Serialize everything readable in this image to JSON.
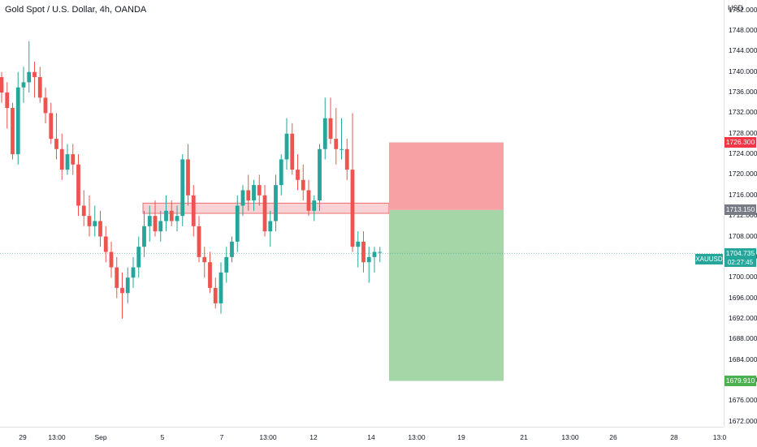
{
  "header": {
    "title": "Gold Spot / U.S. Dollar, 4h, OANDA"
  },
  "price_axis": {
    "currency": "USD",
    "ticks": [
      "1752.000",
      "1748.000",
      "1744.000",
      "1740.000",
      "1736.000",
      "1732.000",
      "1728.000",
      "1724.000",
      "1720.000",
      "1716.000",
      "1712.000",
      "1708.000",
      "1704.000",
      "1700.000",
      "1696.000",
      "1692.000",
      "1688.000",
      "1684.000",
      "1680.000",
      "1676.000",
      "1672.000"
    ],
    "tags": {
      "stop_loss": {
        "text": "1726.300",
        "color": "#f23645"
      },
      "entry": {
        "text": "1713.150",
        "color": "#787b86"
      },
      "current": {
        "text": "1704.735",
        "color": "#26a69a"
      },
      "countdown": "02:27:45",
      "take_profit": {
        "text": "1679.910",
        "color": "#4caf50"
      }
    },
    "symbol": "XAUUSD"
  },
  "time_axis": {
    "labels": [
      "29",
      "13:00",
      "Sep",
      "5",
      "7",
      "13:00",
      "12",
      "14",
      "13:00",
      "19",
      "21",
      "13:00",
      "26",
      "28",
      "13:0"
    ]
  },
  "colors": {
    "up": "#26a69a",
    "down": "#ef5350",
    "risk": "#f7a1a5",
    "reward": "#a5d6a7",
    "zone": "#f8cdd0"
  },
  "chart_data": {
    "type": "candlestick",
    "symbol": "XAUUSD",
    "interval": "4h",
    "ylim": [
      1671,
      1754
    ],
    "current_price": 1704.735,
    "candles": [
      [
        1739,
        1740,
        1734,
        1736
      ],
      [
        1736,
        1738,
        1729,
        1733
      ],
      [
        1733,
        1734,
        1723,
        1724
      ],
      [
        1724,
        1740,
        1722,
        1737
      ],
      [
        1737,
        1741,
        1734,
        1738
      ],
      [
        1738,
        1746,
        1736,
        1740
      ],
      [
        1740,
        1742,
        1735,
        1739
      ],
      [
        1739,
        1741,
        1734,
        1735
      ],
      [
        1735,
        1737,
        1730,
        1732
      ],
      [
        1732,
        1734,
        1726,
        1727
      ],
      [
        1727,
        1732,
        1723,
        1725
      ],
      [
        1725,
        1728,
        1719,
        1721
      ],
      [
        1721,
        1726,
        1720,
        1724
      ],
      [
        1724,
        1726,
        1720,
        1722
      ],
      [
        1722,
        1724,
        1712,
        1714
      ],
      [
        1714,
        1717,
        1710,
        1712
      ],
      [
        1712,
        1716,
        1708,
        1710
      ],
      [
        1710,
        1714,
        1708,
        1711
      ],
      [
        1711,
        1713,
        1706,
        1708
      ],
      [
        1708,
        1710,
        1703,
        1705
      ],
      [
        1705,
        1707,
        1700,
        1702
      ],
      [
        1702,
        1704,
        1696,
        1698
      ],
      [
        1698,
        1701,
        1692,
        1697
      ],
      [
        1697,
        1702,
        1695,
        1700
      ],
      [
        1700,
        1704,
        1698,
        1702
      ],
      [
        1702,
        1708,
        1700,
        1706
      ],
      [
        1706,
        1713,
        1704,
        1710
      ],
      [
        1710,
        1714,
        1707,
        1712
      ],
      [
        1712,
        1715,
        1708,
        1709
      ],
      [
        1709,
        1713,
        1707,
        1711
      ],
      [
        1711,
        1716,
        1709,
        1713
      ],
      [
        1713,
        1715,
        1710,
        1711
      ],
      [
        1711,
        1714,
        1709,
        1712
      ],
      [
        1712,
        1724,
        1710,
        1723
      ],
      [
        1723,
        1726,
        1714,
        1716
      ],
      [
        1716,
        1718,
        1708,
        1710
      ],
      [
        1710,
        1712,
        1703,
        1704
      ],
      [
        1704,
        1706,
        1700,
        1703
      ],
      [
        1703,
        1705,
        1697,
        1698
      ],
      [
        1698,
        1700,
        1694,
        1695
      ],
      [
        1695,
        1703,
        1693,
        1701
      ],
      [
        1701,
        1706,
        1699,
        1704
      ],
      [
        1704,
        1708,
        1703,
        1707
      ],
      [
        1707,
        1716,
        1705,
        1714
      ],
      [
        1714,
        1718,
        1712,
        1717
      ],
      [
        1717,
        1720,
        1713,
        1715
      ],
      [
        1715,
        1719,
        1713,
        1718
      ],
      [
        1718,
        1720,
        1714,
        1716
      ],
      [
        1716,
        1718,
        1708,
        1709
      ],
      [
        1709,
        1713,
        1706,
        1711
      ],
      [
        1711,
        1720,
        1709,
        1718
      ],
      [
        1718,
        1724,
        1716,
        1723
      ],
      [
        1723,
        1731,
        1721,
        1728
      ],
      [
        1728,
        1730,
        1720,
        1721
      ],
      [
        1721,
        1724,
        1717,
        1719
      ],
      [
        1719,
        1722,
        1715,
        1717
      ],
      [
        1717,
        1719,
        1712,
        1713
      ],
      [
        1713,
        1716,
        1711,
        1715
      ],
      [
        1715,
        1726,
        1713,
        1725
      ],
      [
        1725,
        1735,
        1723,
        1731
      ],
      [
        1731,
        1735,
        1726,
        1727
      ],
      [
        1727,
        1733,
        1722,
        1725
      ],
      [
        1725,
        1731,
        1723,
        1725
      ],
      [
        1725,
        1727,
        1719,
        1721
      ],
      [
        1721,
        1732,
        1705,
        1706
      ],
      [
        1706,
        1709,
        1702,
        1707
      ],
      [
        1707,
        1709,
        1701,
        1703
      ],
      [
        1703,
        1706,
        1699,
        1704
      ],
      [
        1704,
        1706,
        1701,
        1705
      ],
      [
        1705,
        1706,
        1703,
        1705
      ]
    ],
    "annotations": {
      "position": {
        "entry": 1713.15,
        "stop_loss": 1726.3,
        "take_profit": 1679.91
      },
      "supply_zone": {
        "top": 1714.5,
        "bottom": 1712.5
      }
    }
  }
}
